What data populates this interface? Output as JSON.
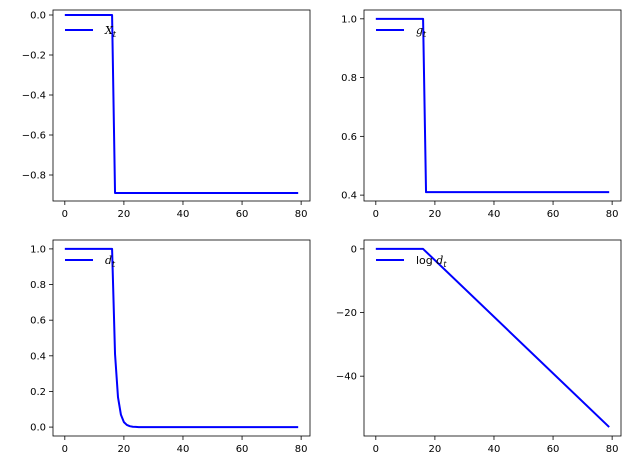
{
  "figure": {
    "line_color": "#0000ff",
    "background": "#ffffff"
  },
  "chart_data": [
    {
      "type": "line",
      "legend": "X_t",
      "legend_plain": "X",
      "legend_sub": "t",
      "legend_placement": "top-left",
      "xlim": [
        -4,
        83
      ],
      "ylim": [
        -0.93,
        0.025
      ],
      "xticks": [
        0,
        20,
        40,
        60,
        80
      ],
      "xtick_labels": [
        "0",
        "20",
        "40",
        "60",
        "80"
      ],
      "yticks": [
        0,
        -0.2,
        -0.4,
        -0.6,
        -0.8
      ],
      "ytick_labels": [
        "0.0",
        "−0.2",
        "−0.4",
        "−0.6",
        "−0.8"
      ],
      "series": [
        {
          "x": [
            0,
            16,
            17,
            79
          ],
          "y": [
            0,
            0,
            -0.89,
            -0.89
          ]
        }
      ]
    },
    {
      "type": "line",
      "legend": "g_t",
      "legend_plain": "g",
      "legend_sub": "t",
      "legend_placement": "top-left",
      "xlim": [
        -4,
        83
      ],
      "ylim": [
        0.38,
        1.03
      ],
      "xticks": [
        0,
        20,
        40,
        60,
        80
      ],
      "xtick_labels": [
        "0",
        "20",
        "40",
        "60",
        "80"
      ],
      "yticks": [
        0.4,
        0.6,
        0.8,
        1.0
      ],
      "ytick_labels": [
        "0.4",
        "0.6",
        "0.8",
        "1.0"
      ],
      "series": [
        {
          "x": [
            0,
            16,
            17,
            79
          ],
          "y": [
            1.0,
            1.0,
            0.41,
            0.41
          ]
        }
      ]
    },
    {
      "type": "line",
      "legend": "d_t",
      "legend_plain": "d",
      "legend_sub": "t",
      "legend_placement": "top-left",
      "xlim": [
        -4,
        83
      ],
      "ylim": [
        -0.05,
        1.05
      ],
      "xticks": [
        0,
        20,
        40,
        60,
        80
      ],
      "xtick_labels": [
        "0",
        "20",
        "40",
        "60",
        "80"
      ],
      "yticks": [
        0.0,
        0.2,
        0.4,
        0.6,
        0.8,
        1.0
      ],
      "ytick_labels": [
        "0.0",
        "0.2",
        "0.4",
        "0.6",
        "0.8",
        "1.0"
      ],
      "series": [
        {
          "x": [
            0,
            16,
            17,
            18,
            19,
            20,
            21,
            22,
            23,
            24,
            25,
            30,
            79
          ],
          "y": [
            1.0,
            1.0,
            0.41,
            0.168,
            0.069,
            0.028,
            0.012,
            0.005,
            0.002,
            0.001,
            0.0,
            0.0,
            0.0
          ]
        }
      ]
    },
    {
      "type": "line",
      "legend": "log d_t",
      "legend_plain": "log d",
      "legend_sub": "t",
      "legend_placement": "top-left",
      "xlim": [
        -4,
        83
      ],
      "ylim": [
        -58.8,
        2.8
      ],
      "xticks": [
        0,
        20,
        40,
        60,
        80
      ],
      "xtick_labels": [
        "0",
        "20",
        "40",
        "60",
        "80"
      ],
      "yticks": [
        0,
        -20,
        -40
      ],
      "ytick_labels": [
        "0",
        "−20",
        "−40"
      ],
      "series": [
        {
          "x": [
            0,
            16,
            79
          ],
          "y": [
            0,
            0,
            -56
          ]
        }
      ]
    }
  ]
}
